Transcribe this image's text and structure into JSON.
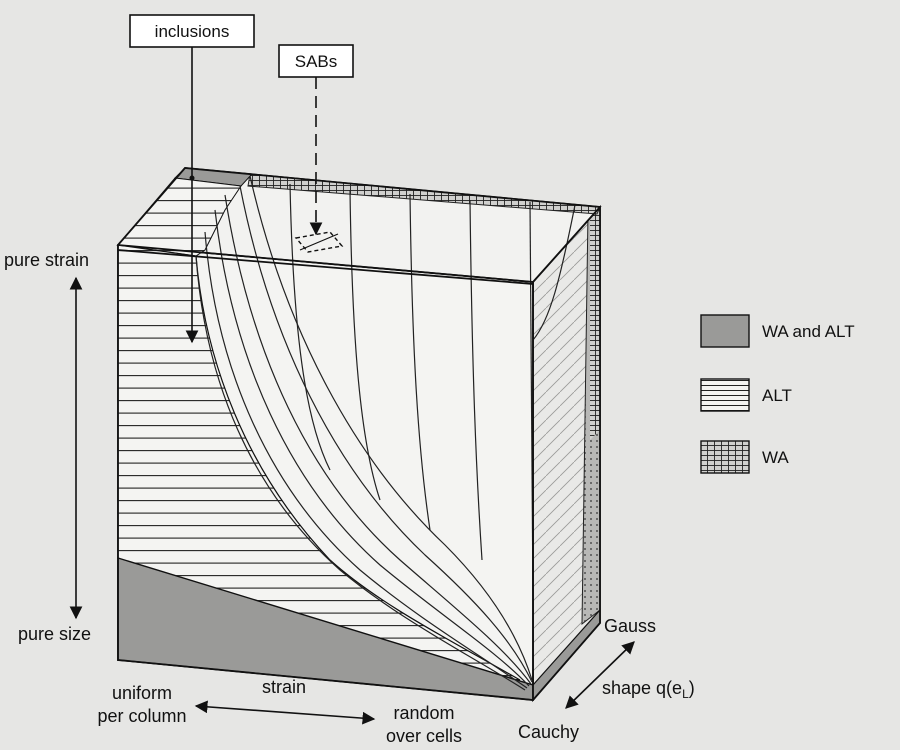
{
  "callouts": {
    "inclusions": "inclusions",
    "sabs": "SABs"
  },
  "axes": {
    "vertical_top": "pure strain",
    "vertical_bottom": "pure size",
    "horizontal_left_line1": "uniform",
    "horizontal_left_line2": "per column",
    "horizontal_middle": "strain",
    "horizontal_right_line1": "random",
    "horizontal_right_line2": "over cells",
    "depth_top": "Gauss",
    "depth_label": "shape q(e",
    "depth_label_sub": "L",
    "depth_label_close": ")",
    "depth_bottom": "Cauchy"
  },
  "legend": [
    {
      "pattern": "shaded",
      "label": "WA and ALT"
    },
    {
      "pattern": "horizontal-lines",
      "label": "ALT"
    },
    {
      "pattern": "grid",
      "label": "WA"
    }
  ],
  "colors": {
    "shade": "#9a9a98",
    "ink": "#111111",
    "background": "#e6e6e4",
    "face": "#f4f4f2"
  }
}
